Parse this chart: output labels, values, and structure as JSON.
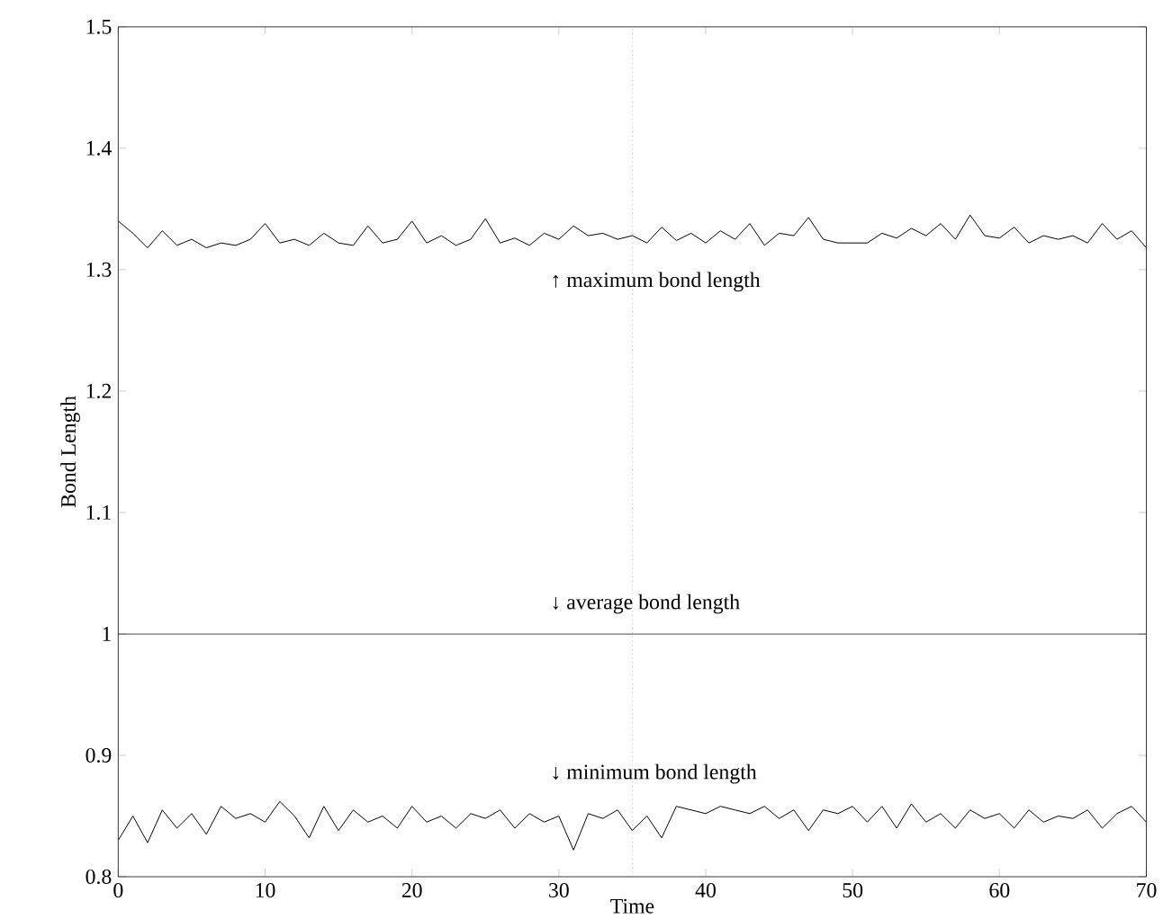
{
  "chart_data": {
    "type": "line",
    "xlabel": "Time",
    "ylabel": "Bond Length",
    "xlim": [
      0,
      70
    ],
    "ylim": [
      0.8,
      1.5
    ],
    "xticks": [
      0,
      10,
      20,
      30,
      40,
      50,
      60,
      70
    ],
    "yticks": [
      0.8,
      0.9,
      1,
      1.1,
      1.2,
      1.3,
      1.4,
      1.5
    ],
    "marker": "none",
    "line_style": "solid",
    "x": [
      0,
      1,
      2,
      3,
      4,
      5,
      6,
      7,
      8,
      9,
      10,
      11,
      12,
      13,
      14,
      15,
      16,
      17,
      18,
      19,
      20,
      21,
      22,
      23,
      24,
      25,
      26,
      27,
      28,
      29,
      30,
      31,
      32,
      33,
      34,
      35,
      36,
      37,
      38,
      39,
      40,
      41,
      42,
      43,
      44,
      45,
      46,
      47,
      48,
      49,
      50,
      51,
      52,
      53,
      54,
      55,
      56,
      57,
      58,
      59,
      60,
      61,
      62,
      63,
      64,
      65,
      66,
      67,
      68,
      69,
      70
    ],
    "series": [
      {
        "color": "#000000",
        "values": [
          1.34,
          1.33,
          1.318,
          1.332,
          1.32,
          1.325,
          1.318,
          1.322,
          1.32,
          1.325,
          1.338,
          1.322,
          1.325,
          1.32,
          1.33,
          1.322,
          1.32,
          1.336,
          1.322,
          1.325,
          1.34,
          1.322,
          1.328,
          1.32,
          1.325,
          1.342,
          1.322,
          1.326,
          1.32,
          1.33,
          1.325,
          1.336,
          1.328,
          1.33,
          1.325,
          1.328,
          1.322,
          1.335,
          1.324,
          1.33,
          1.322,
          1.332,
          1.325,
          1.338,
          1.32,
          1.33,
          1.328,
          1.343,
          1.325,
          1.322,
          1.322,
          1.322,
          1.33,
          1.326,
          1.334,
          1.328,
          1.338,
          1.325,
          1.345,
          1.328,
          1.326,
          1.335,
          1.322,
          1.328,
          1.325,
          1.328,
          1.322,
          1.338,
          1.325,
          1.332,
          1.318
        ]
      },
      {
        "color": "#000000",
        "x": [
          0,
          70
        ],
        "values": [
          1,
          1
        ]
      },
      {
        "color": "#000000",
        "values": [
          0.83,
          0.85,
          0.828,
          0.855,
          0.84,
          0.852,
          0.835,
          0.858,
          0.848,
          0.852,
          0.845,
          0.862,
          0.85,
          0.832,
          0.858,
          0.838,
          0.855,
          0.845,
          0.85,
          0.84,
          0.858,
          0.845,
          0.85,
          0.84,
          0.852,
          0.848,
          0.855,
          0.84,
          0.852,
          0.845,
          0.85,
          0.822,
          0.852,
          0.848,
          0.855,
          0.838,
          0.85,
          0.832,
          0.858,
          0.855,
          0.852,
          0.858,
          0.855,
          0.852,
          0.858,
          0.848,
          0.855,
          0.838,
          0.855,
          0.852,
          0.858,
          0.845,
          0.858,
          0.84,
          0.86,
          0.845,
          0.852,
          0.84,
          0.855,
          0.848,
          0.852,
          0.84,
          0.855,
          0.845,
          0.85,
          0.848,
          0.855,
          0.84,
          0.852,
          0.858,
          0.845
        ]
      }
    ],
    "ref_lines": [
      {
        "axis": "x",
        "value": 35,
        "color": "#999999",
        "line_style": "dotted"
      }
    ],
    "annotations": [
      "↑ maximum bond length",
      "↓ average bond length",
      "↓ minimum bond length"
    ]
  }
}
